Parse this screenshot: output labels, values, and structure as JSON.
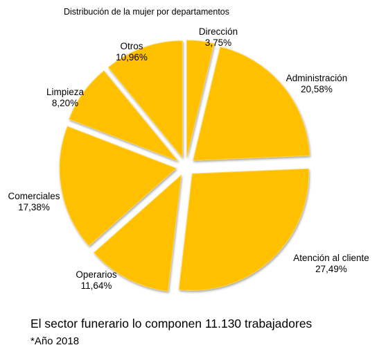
{
  "chart_data": {
    "type": "pie",
    "title": "Distribución de la mujer por departamentos",
    "exploded": true,
    "slice_color": "#FFC000",
    "slices": [
      {
        "label": "Dirección",
        "value": 3.75,
        "display": "3,75%"
      },
      {
        "label": "Administración",
        "value": 20.58,
        "display": "20,58%"
      },
      {
        "label": "Atención al cliente",
        "value": 27.49,
        "display": "27,49%"
      },
      {
        "label": "Operarios",
        "value": 11.64,
        "display": "11,64%"
      },
      {
        "label": "Comerciales",
        "value": 17.38,
        "display": "17,38%"
      },
      {
        "label": "Limpieza",
        "value": 8.2,
        "display": "8,20%"
      },
      {
        "label": "Otros",
        "value": 10.96,
        "display": "10,96%"
      }
    ]
  },
  "caption": "El sector funerario lo componen 11.130 trabajadores",
  "footnote": "*Año 2018"
}
